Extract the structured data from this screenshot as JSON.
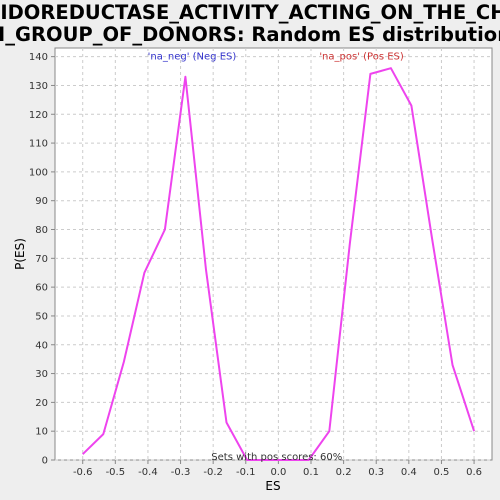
{
  "chart_data": {
    "type": "line",
    "title_lines": [
      "OXIDOREDUCTASE_ACTIVITY_ACTING_ON_THE_CH_C",
      "H_GROUP_OF_DONORS: Random ES distribution"
    ],
    "xlabel": "ES",
    "ylabel": "P(ES)",
    "xlim": [
      -0.685,
      0.655
    ],
    "ylim": [
      0,
      143
    ],
    "x_ticks": [
      -0.6,
      -0.5,
      -0.4,
      -0.3,
      -0.2,
      -0.1,
      0.0,
      0.1,
      0.2,
      0.3,
      0.4,
      0.5,
      0.6
    ],
    "x_tick_labels": [
      "-0.6",
      "-0.5",
      "-0.4",
      "-0.3",
      "-0.2",
      "-0.1",
      "0.0",
      "0.1",
      "0.2",
      "0.3",
      "0.4",
      "0.5",
      "0.6"
    ],
    "y_ticks": [
      0,
      10,
      20,
      30,
      40,
      50,
      60,
      70,
      80,
      90,
      100,
      110,
      120,
      130,
      140
    ],
    "y_tick_labels": [
      "0",
      "10",
      "20",
      "30",
      "40",
      "50",
      "60",
      "70",
      "80",
      "90",
      "100",
      "110",
      "120",
      "130",
      "140"
    ],
    "grid": true,
    "series": [
      {
        "color": "#ee44ee",
        "x": [
          -0.6,
          -0.537,
          -0.474,
          -0.411,
          -0.348,
          -0.285,
          -0.222,
          -0.159,
          -0.096,
          -0.033,
          0.03,
          0.093,
          0.156,
          0.219,
          0.282,
          0.345,
          0.408,
          0.471,
          0.534,
          0.6
        ],
        "y": [
          2,
          9,
          34,
          65,
          80,
          133,
          66,
          13,
          0,
          0,
          0,
          0,
          10,
          75,
          134,
          136,
          123,
          77,
          33,
          10
        ]
      }
    ],
    "annotations": [
      {
        "text": "'na_neg' (Neg ES)",
        "x": -0.265,
        "y": 140,
        "color": "#3333cc"
      },
      {
        "text": "'na_pos' (Pos ES)",
        "x": 0.255,
        "y": 140,
        "color": "#cc3333"
      },
      {
        "text": "Sets with pos scores: 60%",
        "x": -0.005,
        "y": 1,
        "color": "#333333"
      }
    ]
  },
  "colors": {
    "background": "#eeeeee",
    "plot_background": "#ffffff",
    "grid": "#cccccc",
    "axis": "#888888"
  }
}
